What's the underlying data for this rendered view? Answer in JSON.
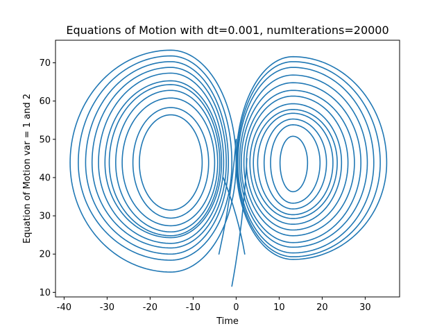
{
  "chart_data": {
    "type": "line",
    "title": "Equations of Motion with dt=0.001, numIterations=20000",
    "xlabel": "Time",
    "ylabel": "Equation of Motion var = 1 and 2",
    "xlim": [
      -42,
      38
    ],
    "ylim": [
      8.8,
      75.9
    ],
    "xticks": [
      -40,
      -30,
      -20,
      -10,
      0,
      10,
      20,
      30
    ],
    "yticks": [
      10,
      20,
      30,
      40,
      50,
      60,
      70
    ],
    "grid": false,
    "series": [
      {
        "color": "#1f77b4",
        "x": [
          -38.6,
          -12.3,
          14.3,
          35.0
        ],
        "y": [
          11.6,
          31.4,
          37.0,
          72.5
        ],
        "lobes": [
          {
            "center": [
              -15.2,
              43.9
            ],
            "radii": [
              [
                -22.5,
                -7.9,
                31.4,
                56.3
              ],
              [
                -24.0,
                -6.4,
                29.5,
                58.4
              ],
              [
                -26.5,
                -5.0,
                27.0,
                60.4
              ],
              [
                -28.0,
                -4.3,
                25.0,
                62.0
              ],
              [
                -29.5,
                -3.8,
                23.5,
                63.0
              ],
              [
                -30.5,
                -3.4,
                22.5,
                63.5
              ],
              [
                -32.0,
                -2.9,
                20.5,
                65.0
              ],
              [
                -33.5,
                -2.3,
                19.0,
                66.2
              ],
              [
                -35.0,
                -1.8,
                17.5,
                67.8
              ],
              [
                -36.7,
                -1.0,
                16.0,
                69.4
              ],
              [
                -38.6,
                0.0,
                14.5,
                72.5
              ]
            ]
          },
          {
            "center": [
              13.2,
              43.9
            ],
            "radii": [
              [
                10.2,
                16.6,
                37.0,
                51.5
              ],
              [
                8.0,
                19.5,
                34.0,
                54.5
              ],
              [
                6.5,
                21.0,
                32.5,
                56.0
              ],
              [
                5.0,
                22.5,
                31.0,
                57.5
              ],
              [
                4.0,
                23.5,
                30.0,
                58.5
              ],
              [
                3.2,
                24.5,
                28.5,
                60.0
              ],
              [
                2.4,
                26.0,
                26.5,
                61.5
              ],
              [
                1.8,
                27.5,
                25.0,
                63.0
              ],
              [
                1.2,
                29.0,
                23.0,
                64.8
              ],
              [
                0.8,
                30.5,
                21.0,
                66.0
              ],
              [
                0.4,
                32.0,
                19.0,
                67.5
              ],
              [
                0.2,
                33.5,
                17.5,
                68.5
              ],
              [
                0.0,
                35.0,
                16.2,
                69.2
              ]
            ]
          }
        ],
        "crossings": [
          {
            "from": [
              -3.0,
              40.0
            ],
            "to": [
              2.0,
              20.0
            ]
          },
          {
            "from": [
              -1.0,
              11.6
            ],
            "to": [
              2.5,
              45.0
            ]
          },
          {
            "from": [
              0.0,
              50.0
            ],
            "to": [
              -4.0,
              20.0
            ]
          }
        ]
      }
    ]
  }
}
